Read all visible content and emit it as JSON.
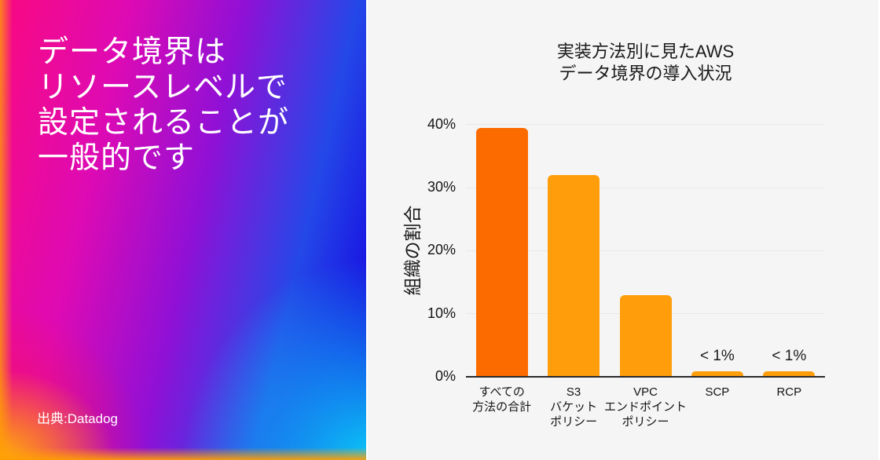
{
  "left_panel": {
    "headline_lines": [
      "データ境界は",
      "リソースレベルで",
      "設定されることが",
      "一般的です"
    ],
    "source": "出典:Datadog",
    "text_color": "#ffffff",
    "gradient_colors": {
      "top_left_pink": "#fa0980",
      "magenta": "#dd0ab4",
      "purple": "#9010d6",
      "right_blue": "#1605e0",
      "mid_blue": "#2448e8",
      "bottom_right_cyan": "#0bd6f8",
      "bottom_left_crimson": "#f91156",
      "edge_orange": "#ff9e05",
      "corner_yellow": "#ffc400"
    }
  },
  "chart_data": {
    "type": "bar",
    "title_lines": [
      "実装方法別に見たAWS",
      "データ境界の導入状況"
    ],
    "ylabel": "組織の割合",
    "ylim": [
      0,
      40
    ],
    "ytick_labels": [
      "0%",
      "10%",
      "20%",
      "30%",
      "40%"
    ],
    "grid": true,
    "legend": false,
    "categories": [
      [
        "すべての",
        "方法の合計"
      ],
      [
        "S3",
        "バケット",
        "ポリシー"
      ],
      [
        "VPC",
        "エンドポイント",
        "ポリシー"
      ],
      [
        "SCP"
      ],
      [
        "RCP"
      ]
    ],
    "values": [
      39.5,
      32,
      13,
      0.9,
      0.9
    ],
    "bar_value_labels": [
      "",
      "",
      "",
      "< 1%",
      "< 1%"
    ],
    "bar_colors": [
      "#fc6b00",
      "#ff9e0a",
      "#ff9e0a",
      "#ff9e0a",
      "#ff9e0a"
    ],
    "background": "#f5f5f6",
    "gridline_color": "#e8e8ea",
    "axis_color": "#29292c",
    "text_color": "#1a1a1a"
  }
}
